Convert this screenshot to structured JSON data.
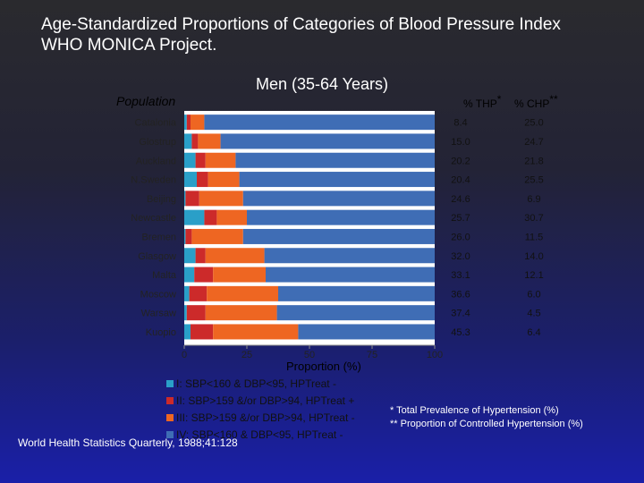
{
  "title_line1": "Age-Standardized Proportions of Categories of Blood Pressure Index",
  "title_line2": "WHO MONICA Project.",
  "subtitle": "Men (35-64 Years)",
  "population_label": "Population",
  "thp_header": "% THP",
  "thp_header_mark": "*",
  "chp_header": "% CHP",
  "chp_header_mark": "**",
  "legend": [
    {
      "label": "I: SBP<160 & DBP<95, HPTreat -",
      "color": "#2a9fc8"
    },
    {
      "label": "II: SBP>159 &/or DBP>94, HPTreat +",
      "color": "#cc2a2a"
    },
    {
      "label": "III: SBP>159 &/or DBP>94, HPTreat -",
      "color": "#ee6622"
    },
    {
      "label": "IV: SBP<160 & DBP<95, HPTreat -",
      "color": "#3f6db5"
    }
  ],
  "source": "World Health Statistics Quarterly, 1988;41:128",
  "note1": "* Total Prevalence of Hypertension (%)",
  "note2": "** Proportion of Controlled Hypertension (%)",
  "chart_data": {
    "type": "bar",
    "orientation": "horizontal-stacked",
    "xlabel": "Proportion (%)",
    "xlim": [
      0,
      100
    ],
    "xticks": [
      "0",
      "25",
      "50",
      "75",
      "100"
    ],
    "categories": [
      "Catalonia",
      "Glostrup",
      "Auckland",
      "N.Sweden",
      "Beijing",
      "Newcastle",
      "Bremen",
      "Glasgow",
      "Malta",
      "Moscow",
      "Warsaw",
      "Kuopio"
    ],
    "series": [
      {
        "name": "I",
        "color": "#2a9fc8",
        "values": [
          1.0,
          3.0,
          4.5,
          5.0,
          0.5,
          8.0,
          0.5,
          4.5,
          4.0,
          2.0,
          1.0,
          2.5
        ]
      },
      {
        "name": "II",
        "color": "#cc2a2a",
        "values": [
          1.5,
          2.5,
          4.0,
          4.5,
          5.5,
          5.0,
          2.5,
          4.0,
          7.5,
          7.0,
          7.5,
          9.0
        ]
      },
      {
        "name": "III",
        "color": "#ee6622",
        "values": [
          5.5,
          9.0,
          12.0,
          12.5,
          17.5,
          12.0,
          20.5,
          23.5,
          21.0,
          28.5,
          28.5,
          34.0
        ]
      },
      {
        "name": "IV",
        "color": "#3f6db5",
        "values": [
          92.0,
          85.5,
          79.5,
          78.0,
          76.5,
          75.0,
          76.5,
          68.0,
          67.5,
          62.5,
          63.0,
          54.5
        ]
      }
    ],
    "thp": [
      "8.4",
      "15.0",
      "20.2",
      "20.4",
      "24.6",
      "25.7",
      "26.0",
      "32.0",
      "33.1",
      "36.6",
      "37.4",
      "45.3"
    ],
    "chp": [
      "25.0",
      "24.7",
      "21.8",
      "25.5",
      "6.9",
      "30.7",
      "11.5",
      "14.0",
      "12.1",
      "6.0",
      "4.5",
      "6.4"
    ]
  }
}
